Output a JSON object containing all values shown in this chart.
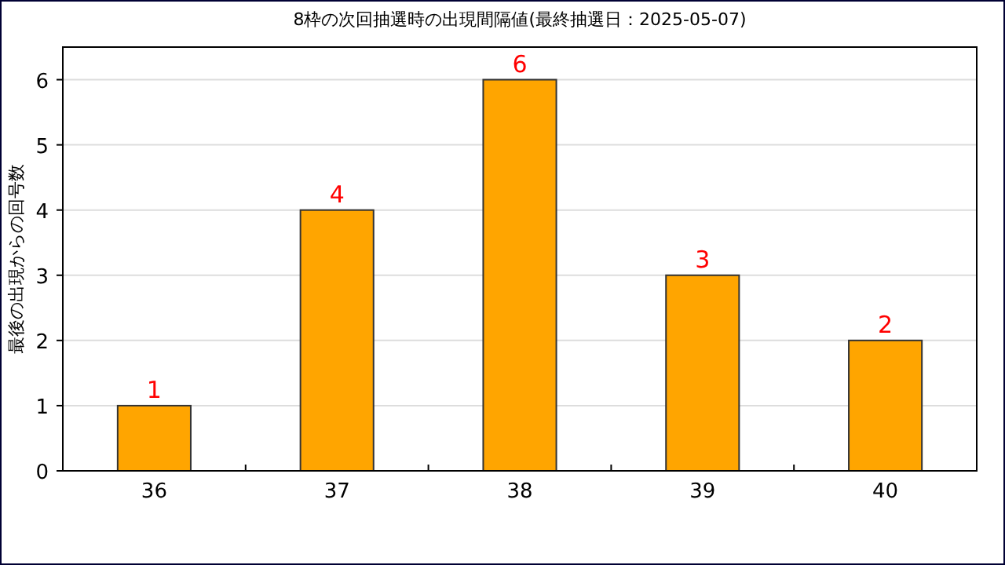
{
  "chart_data": {
    "type": "bar",
    "title": "8枠の次回抽選時の出現間隔値(最終抽選日：2025-05-07)",
    "ylabel": "最後の出現からの回号数",
    "categories": [
      "36",
      "37",
      "38",
      "39",
      "40"
    ],
    "values": [
      1,
      4,
      6,
      3,
      2
    ],
    "color": "#ffa500",
    "ylim": [
      0,
      6.5
    ],
    "yticks": [
      0,
      1,
      2,
      3,
      4,
      5,
      6
    ],
    "grid": "y",
    "data_labels": true
  }
}
